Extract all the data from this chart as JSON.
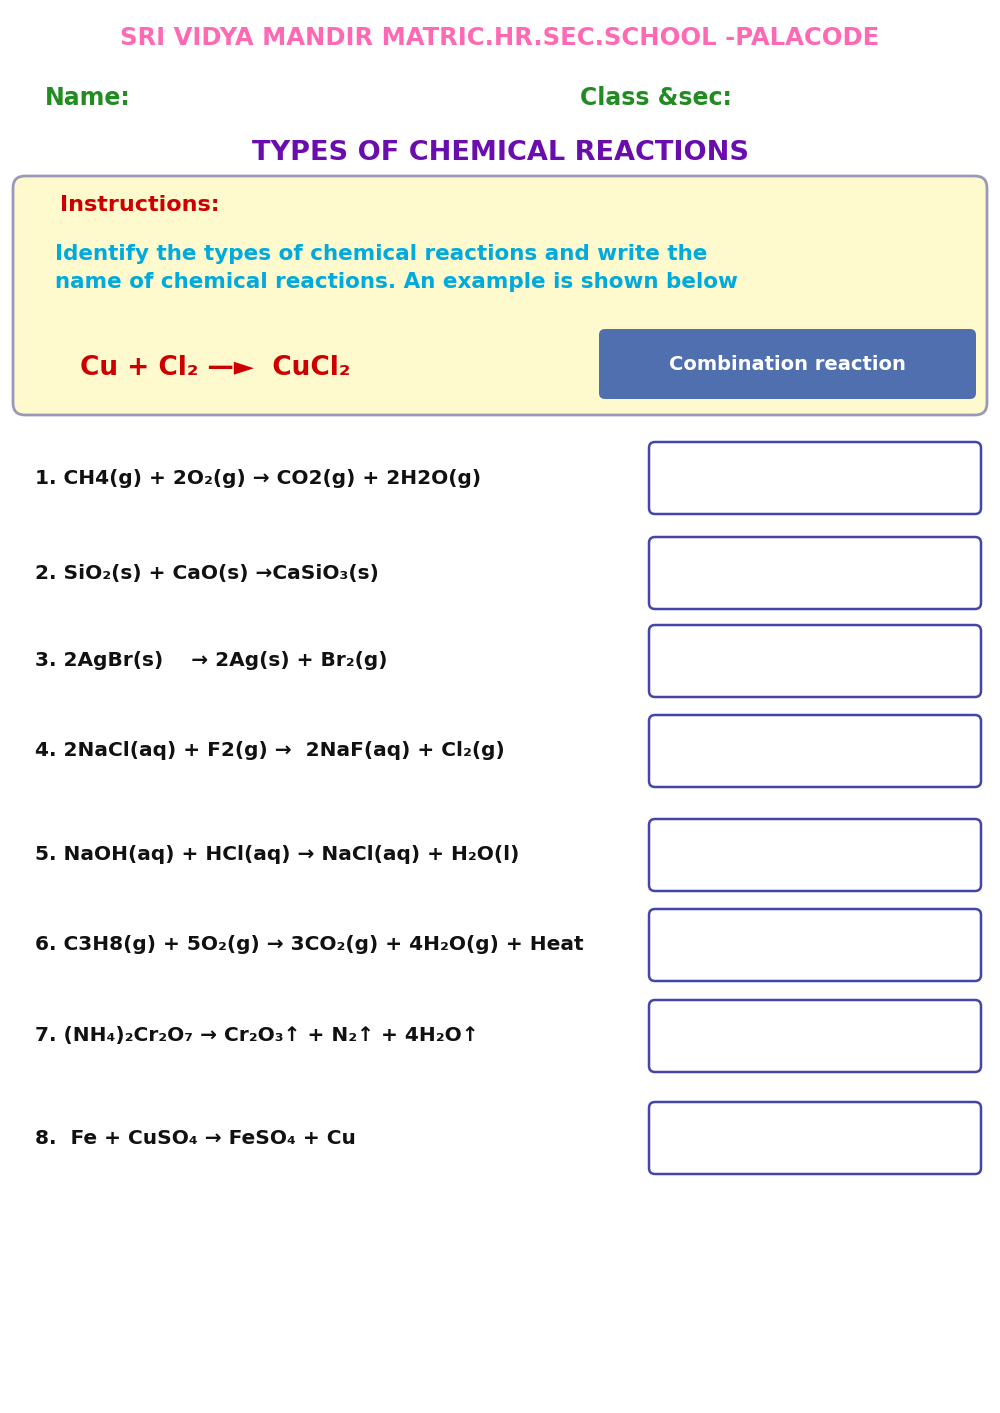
{
  "title_school": "SRI VIDYA MANDIR MATRIC.HR.SEC.SCHOOL -PALACODE",
  "title_school_color": "#FF69B4",
  "name_label": "Name:",
  "class_label": "Class &sec:",
  "name_class_color": "#228B22",
  "worksheet_title": "TYPES OF CHEMICAL REACTIONS",
  "worksheet_title_color": "#6A0DAD",
  "instructions_label": "Instructions:",
  "instructions_color": "#CC0000",
  "instructions_text": "Identify the types of chemical reactions and write the\nname of chemical reactions. An example is shown below",
  "instructions_text_color": "#00AADD",
  "example_eq": "Cu + Cl₂ —►  CuCl₂",
  "example_eq_color": "#CC0000",
  "example_box_text": "Combination reaction",
  "example_box_color": "#4F6FAF",
  "example_box_text_color": "#FFFFFF",
  "instruction_box_bg": "#FFFACD",
  "instruction_box_border": "#9999BB",
  "questions": [
    "1. CH4(g) + 2O₂(g) → CO2(g) + 2H2O(g)",
    "2. SiO₂(s) + CaO(s) →CaSiO₃(s)",
    "3. 2AgBr(s)    → 2Ag(s) + Br₂(g)",
    "4. 2NaCl(aq) + F2(g) →  2NaF(aq) + Cl₂(g)",
    "5. NaOH(aq) + HCl(aq) → NaCl(aq) + H₂O(l)",
    "6. C3H8(g) + 5O₂(g) → 3CO₂(g) + 4H₂O(g) + Heat",
    "7. (NH₄)₂Cr₂O₇ → Cr₂O₃↑ + N₂↑ + 4H₂O↑",
    "8.  Fe + CuSO₄ → FeSO₄ + Cu"
  ],
  "answer_box_color": "#4444AA",
  "background_color": "#FFFFFF",
  "page_width": 10.0,
  "page_height": 14.13
}
